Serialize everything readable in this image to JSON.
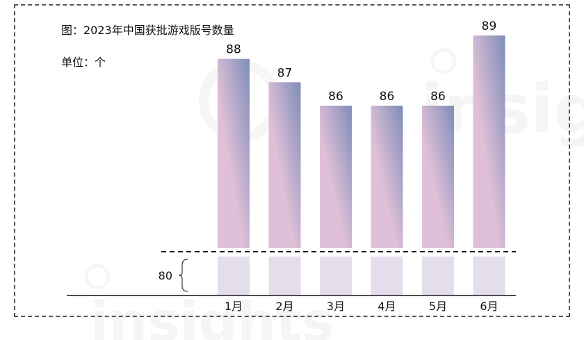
{
  "chart_data": {
    "type": "bar",
    "title": "图：2023年中国获批游戏版号数量",
    "unit": "单位：个",
    "categories": [
      "1月",
      "2月",
      "3月",
      "4月",
      "5月",
      "6月"
    ],
    "values": [
      88,
      87,
      86,
      86,
      86,
      89
    ],
    "broken_axis_baseline": 80,
    "broken_axis_label": "80",
    "gradient_colors": [
      "#7f8db8",
      "#e0c0d8"
    ],
    "lower_segment_color": "#e4ddeb",
    "ylabel": "",
    "xlabel": ""
  },
  "watermark": "insights"
}
